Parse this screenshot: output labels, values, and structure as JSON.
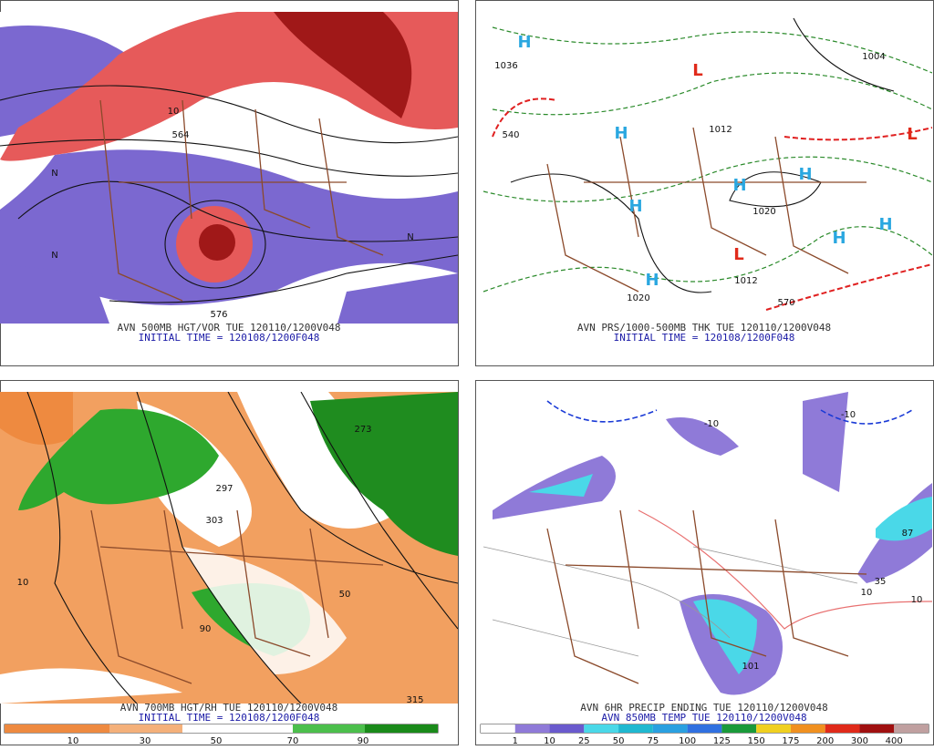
{
  "panels": [
    {
      "caption": "AVN 500MB HGT/VOR TUE 120110/1200V048",
      "initial_time": "INITIAL TIME = 120108/1200F048",
      "labels": [
        "564",
        "576",
        "10",
        "N",
        "N",
        "N"
      ]
    },
    {
      "caption": "AVN PRS/1000-500MB THK TUE 120110/1200V048",
      "initial_time": "INITIAL TIME = 120108/1200F048",
      "labels": [
        "1036",
        "1012",
        "1020",
        "1012",
        "1020",
        "540",
        "570",
        "1004"
      ],
      "centers": [
        "H",
        "H",
        "H",
        "H",
        "H",
        "H",
        "H",
        "H",
        "L",
        "L",
        "L"
      ]
    },
    {
      "caption": "AVN 700MB HGT/RH TUE 120110/1200V048",
      "initial_time": "INITIAL TIME = 120108/1200F048",
      "labels": [
        "303",
        "315",
        "273",
        "297",
        "10",
        "90",
        "50"
      ]
    },
    {
      "caption": "AVN 6HR PRECIP ENDING TUE 120110/1200V048",
      "initial_time": "AVN 850MB TEMP TUE 120110/1200V048",
      "labels": [
        "35",
        "87",
        "101",
        "-10",
        "-10",
        "10",
        "10"
      ]
    }
  ],
  "colorbars": [
    {
      "labels": [
        "10",
        "30",
        "50",
        "70",
        "90"
      ]
    },
    {
      "labels": [
        "1",
        "10",
        "25",
        "50",
        "75",
        "100",
        "125",
        "150",
        "175",
        "200",
        "300",
        "400"
      ]
    }
  ]
}
